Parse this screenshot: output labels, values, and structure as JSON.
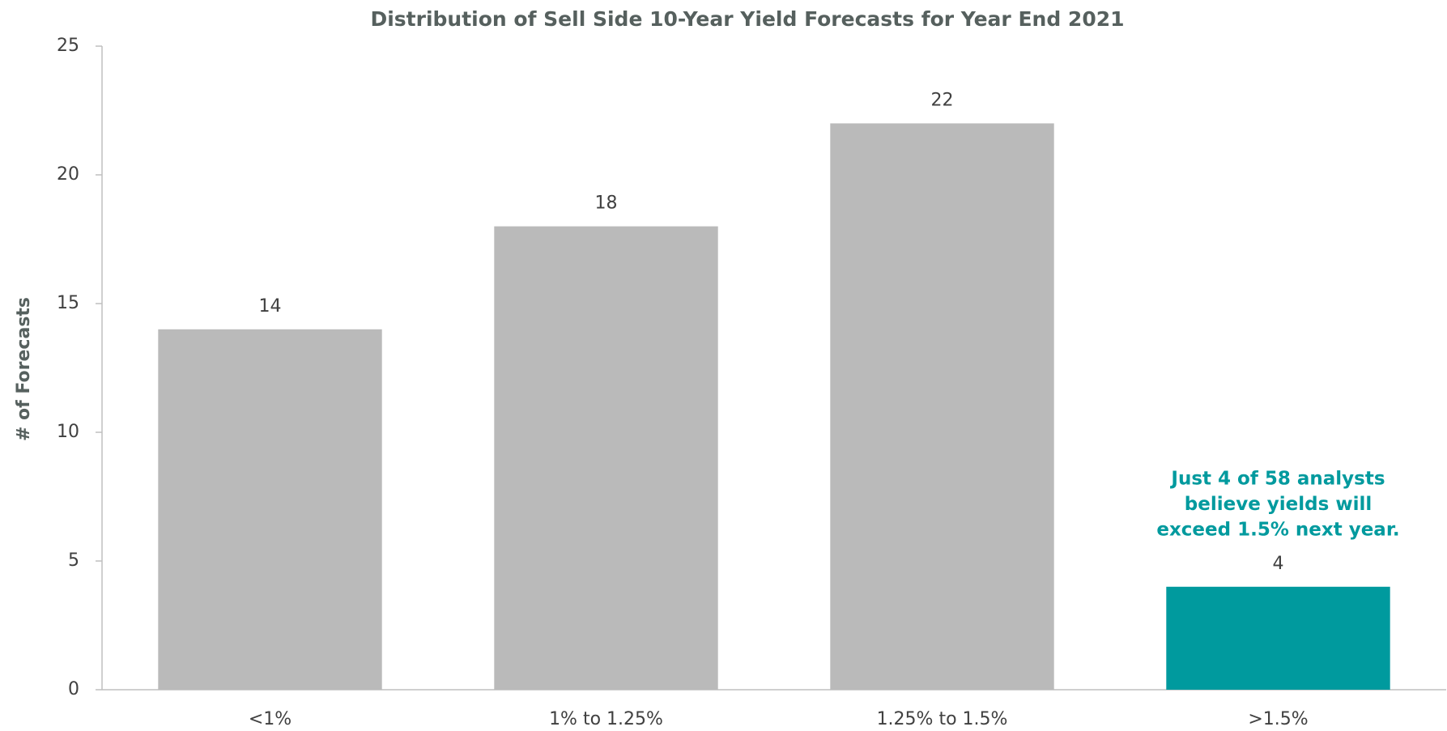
{
  "chart_data": {
    "type": "bar",
    "title": "Distribution of Sell Side 10-Year Yield Forecasts for Year End 2021",
    "y_label": "# of Forecasts",
    "categories": [
      "<1%",
      "1% to 1.25%",
      "1.25% to 1.5%",
      ">1.5%"
    ],
    "values": [
      14,
      18,
      22,
      4
    ],
    "colors": [
      "#bababa",
      "#bababa",
      "#bababa",
      "#009a9e"
    ],
    "ylim": [
      0,
      25
    ],
    "yticks": [
      0,
      5,
      10,
      15,
      20,
      25
    ],
    "annotation": {
      "lines": [
        "Just 4 of 58 analysts",
        "believe yields will",
        "exceed 1.5% next year."
      ],
      "color": "#009a9e"
    }
  }
}
